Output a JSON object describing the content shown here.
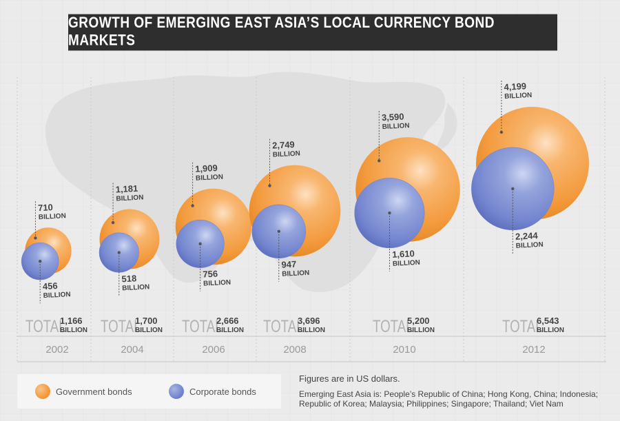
{
  "title": "GROWTH OF EMERGING EAST ASIA’S LOCAL CURRENCY BOND MARKETS",
  "chart_data": {
    "type": "bubble",
    "unit_label": "BILLION",
    "total_label": "TOTAL",
    "categories": [
      "2002",
      "2004",
      "2006",
      "2008",
      "2010",
      "2012"
    ],
    "series": [
      {
        "name": "Government bonds",
        "values": [
          710,
          1181,
          1909,
          2749,
          3590,
          4199
        ],
        "value_labels": [
          "710",
          "1,181",
          "1,909",
          "2,749",
          "3,590",
          "4,199"
        ],
        "color": "#f39a3d"
      },
      {
        "name": "Corporate bonds",
        "values": [
          456,
          518,
          756,
          947,
          1610,
          2244
        ],
        "value_labels": [
          "456",
          "518",
          "756",
          "947",
          "1,610",
          "2,244"
        ],
        "color": "#7486cf"
      }
    ],
    "totals": [
      1166,
      1700,
      2666,
      3696,
      5200,
      6543
    ],
    "total_labels": [
      "1,166",
      "1,700",
      "2,666",
      "3,696",
      "5,200",
      "6,543"
    ]
  },
  "legend": {
    "government": "Government bonds",
    "corporate": "Corporate bonds"
  },
  "notes": {
    "currency": "Figures are in US dollars.",
    "economies": "Emerging East Asia is: People’s Republic of China;  Hong Kong, China; Indonesia; Republic of Korea; Malaysia; Philippines; Singapore; Thailand; Viet Nam"
  }
}
